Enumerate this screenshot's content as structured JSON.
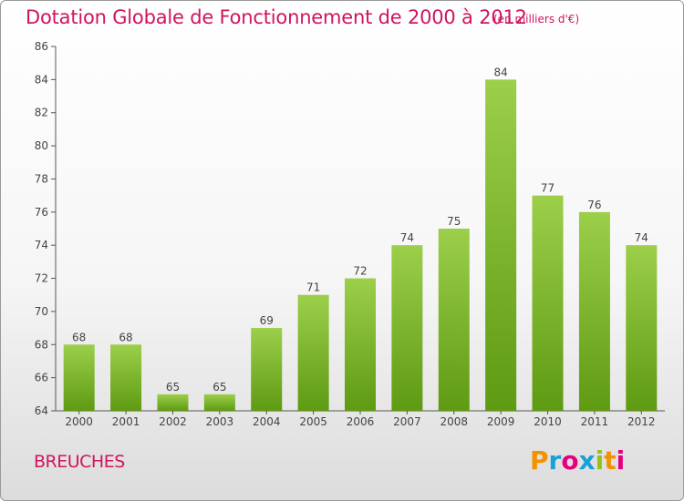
{
  "header": {
    "title": "Dotation Globale de Fonctionnement de 2000 à 2012",
    "unit": "(en milliers d'€)"
  },
  "footer": {
    "commune": "BREUCHES",
    "logo_text": "Proxiti",
    "logo_colors": [
      "#f39200",
      "#1aa0d8",
      "#e6007e",
      "#1aa0d8",
      "#95c11f",
      "#f39200",
      "#e6007e"
    ]
  },
  "colors": {
    "title": "#d0145f",
    "bar_top": "#9ccf4a",
    "bar_bottom": "#5e9a12",
    "axis": "#555555"
  },
  "chart_data": {
    "type": "bar",
    "title": "Dotation Globale de Fonctionnement de 2000 à 2012",
    "subtitle": "(en milliers d'€)",
    "xlabel": "",
    "ylabel": "",
    "categories": [
      "2000",
      "2001",
      "2002",
      "2003",
      "2004",
      "2005",
      "2006",
      "2007",
      "2008",
      "2009",
      "2010",
      "2011",
      "2012"
    ],
    "values": [
      68,
      68,
      65,
      65,
      69,
      71,
      72,
      74,
      75,
      84,
      77,
      76,
      74
    ],
    "ylim": [
      64,
      86
    ],
    "yticks": [
      64,
      66,
      68,
      70,
      72,
      74,
      76,
      78,
      80,
      82,
      84,
      86
    ],
    "grid": false,
    "legend": "none",
    "data_labels": true
  }
}
